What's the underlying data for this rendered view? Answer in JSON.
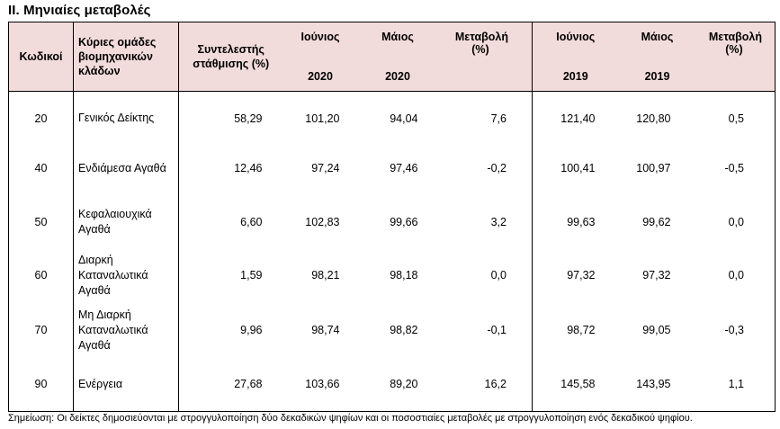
{
  "title": "II. Μηνιαίες μεταβολές",
  "headers": {
    "code": "Κωδικοί",
    "group": "Κύριες ομάδες βιομηχανικών κλάδων",
    "weight": "Συντελεστής στάθμισης (%)",
    "june_2020": {
      "month": "Ιούνιος",
      "year": "2020"
    },
    "may_2020": {
      "month": "Μάιος",
      "year": "2020"
    },
    "change_2020": {
      "label": "Μεταβολή",
      "unit": "(%)"
    },
    "june_2019": {
      "month": "Ιούνιος",
      "year": "2019"
    },
    "may_2019": {
      "month": "Μάιος",
      "year": "2019"
    },
    "change_2019": {
      "label": "Μεταβολή",
      "unit": "(%)"
    }
  },
  "rows": [
    {
      "code": "20",
      "group": "Γενικός Δείκτης",
      "weight": "58,29",
      "june_2020": "101,20",
      "may_2020": "94,04",
      "change_2020": "7,6",
      "june_2019": "121,40",
      "may_2019": "120,80",
      "change_2019": "0,5"
    },
    {
      "code": "40",
      "group": "Ενδιάμεσα Αγαθά",
      "weight": "12,46",
      "june_2020": "97,24",
      "may_2020": "97,46",
      "change_2020": "-0,2",
      "june_2019": "100,41",
      "may_2019": "100,97",
      "change_2019": "-0,5"
    },
    {
      "code": "50",
      "group": "Κεφαλαιουχικά Αγαθά",
      "weight": "6,60",
      "june_2020": "102,83",
      "may_2020": "99,66",
      "change_2020": "3,2",
      "june_2019": "99,63",
      "may_2019": "99,62",
      "change_2019": "0,0"
    },
    {
      "code": "60",
      "group": "Διαρκή Καταναλωτικά Αγαθά",
      "weight": "1,59",
      "june_2020": "98,21",
      "may_2020": "98,18",
      "change_2020": "0,0",
      "june_2019": "97,32",
      "may_2019": "97,32",
      "change_2019": "0,0"
    },
    {
      "code": "70",
      "group": "Μη Διαρκή Καταναλωτικά Αγαθά",
      "weight": "9,96",
      "june_2020": "98,74",
      "may_2020": "98,82",
      "change_2020": "-0,1",
      "june_2019": "98,72",
      "may_2019": "99,05",
      "change_2019": "-0,3"
    },
    {
      "code": "90",
      "group": "Ενέργεια",
      "weight": "27,68",
      "june_2020": "103,66",
      "may_2020": "89,20",
      "change_2020": "16,2",
      "june_2019": "145,58",
      "may_2019": "143,95",
      "change_2019": "1,1"
    }
  ],
  "note": "Σημείωση: Οι δείκτες δημοσιεύονται με στρογγυλοποίηση δύο δεκαδικών ψηφίων και οι ποσοστιαίες μεταβολές με στρογγυλοποίηση ενός δεκαδικού ψηφίου."
}
